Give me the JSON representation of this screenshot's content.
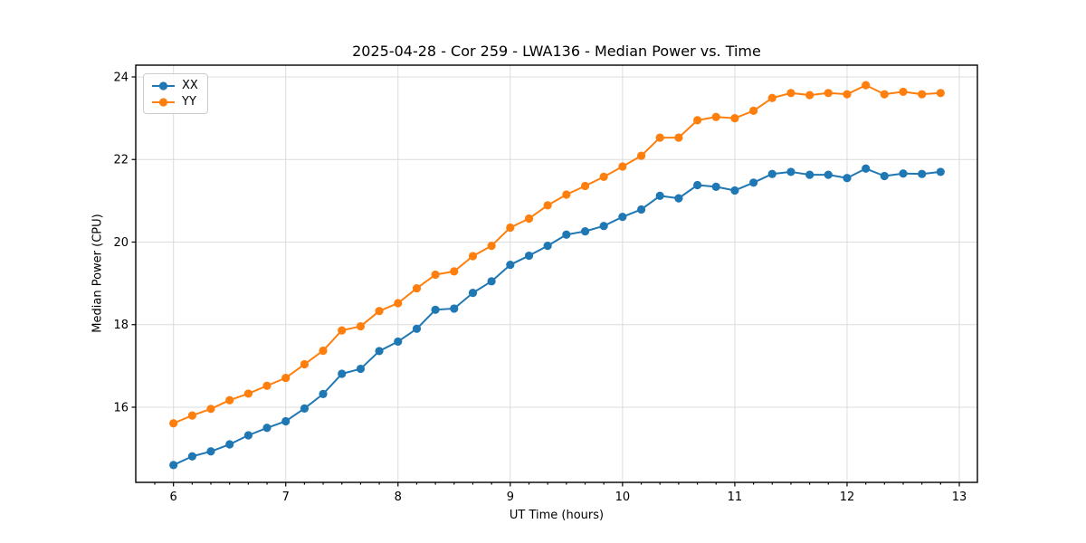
{
  "figure": {
    "title": "2025-04-28 - Cor 259 - LWA136 - Median Power vs. Time",
    "xlabel": "UT Time (hours)",
    "ylabel": "Median Power (CPU)"
  },
  "legend": {
    "entries": [
      {
        "label": "XX",
        "color": "#1f77b4"
      },
      {
        "label": "YY",
        "color": "#ff7f0e"
      }
    ]
  },
  "colors": {
    "series_xx": "#1f77b4",
    "series_yy": "#ff7f0e",
    "grid": "#dcdcdc",
    "spine": "#000000",
    "tick_label": "#000000",
    "legend_border": "#cccccc"
  },
  "chart_data": {
    "type": "line",
    "title": "2025-04-28 - Cor 259 - LWA136 - Median Power vs. Time",
    "xlabel": "UT Time (hours)",
    "ylabel": "Median Power (CPU)",
    "grid": true,
    "legend_position": "upper left",
    "xlim": [
      5.664,
      13.161
    ],
    "ylim": [
      14.18,
      24.285
    ],
    "x_ticks": [
      6,
      7,
      8,
      9,
      10,
      11,
      12,
      13
    ],
    "y_ticks": [
      16,
      18,
      20,
      22,
      24
    ],
    "x_minor_step": 0.16667,
    "x": [
      6.0,
      6.167,
      6.333,
      6.5,
      6.667,
      6.833,
      7.0,
      7.167,
      7.333,
      7.5,
      7.667,
      7.833,
      8.0,
      8.167,
      8.333,
      8.5,
      8.667,
      8.833,
      9.0,
      9.167,
      9.333,
      9.5,
      9.667,
      9.833,
      10.0,
      10.167,
      10.333,
      10.5,
      10.667,
      10.833,
      11.0,
      11.167,
      11.333,
      11.5,
      11.667,
      11.833,
      12.0,
      12.167,
      12.333,
      12.5,
      12.667,
      12.833
    ],
    "series": [
      {
        "name": "XX",
        "color": "#1f77b4",
        "values": [
          14.6,
          14.81,
          14.93,
          15.1,
          15.32,
          15.5,
          15.66,
          15.97,
          16.32,
          16.81,
          16.93,
          17.36,
          17.59,
          17.9,
          18.36,
          18.39,
          18.77,
          19.05,
          19.45,
          19.67,
          19.91,
          20.18,
          20.26,
          20.39,
          20.61,
          20.79,
          21.12,
          21.06,
          21.38,
          21.34,
          21.25,
          21.44,
          21.65,
          21.7,
          21.63,
          21.63,
          21.55,
          21.78,
          21.6,
          21.66,
          21.65,
          21.7
        ]
      },
      {
        "name": "YY",
        "color": "#ff7f0e",
        "values": [
          15.61,
          15.8,
          15.96,
          16.17,
          16.33,
          16.52,
          16.71,
          17.04,
          17.37,
          17.86,
          17.96,
          18.33,
          18.52,
          18.88,
          19.21,
          19.29,
          19.66,
          19.91,
          20.35,
          20.57,
          20.89,
          21.15,
          21.36,
          21.58,
          21.83,
          22.09,
          22.53,
          22.53,
          22.95,
          23.03,
          23.0,
          23.18,
          23.49,
          23.61,
          23.56,
          23.61,
          23.58,
          23.8,
          23.58,
          23.64,
          23.58,
          23.61
        ]
      }
    ]
  }
}
